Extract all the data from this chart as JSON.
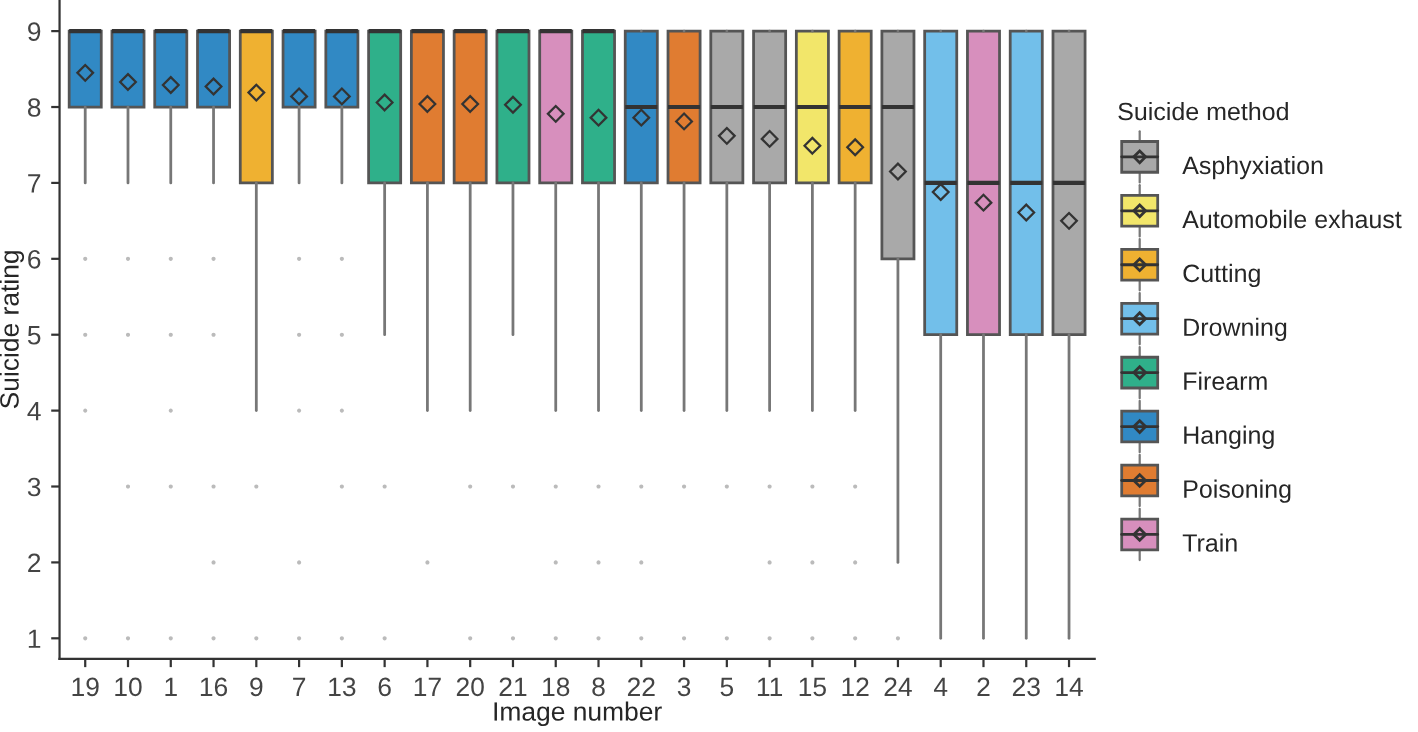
{
  "chart_data": {
    "type": "box",
    "xlabel": "Image number",
    "ylabel": "Suicide rating",
    "legend_title": "Suicide method",
    "legend": "right",
    "grid": false,
    "categories": [
      "19",
      "10",
      "1",
      "16",
      "9",
      "7",
      "13",
      "6",
      "17",
      "20",
      "21",
      "18",
      "8",
      "22",
      "3",
      "5",
      "11",
      "15",
      "12",
      "24",
      "4",
      "2",
      "23",
      "14"
    ],
    "ylim": [
      0.73,
      9.41
    ],
    "yticks": [
      1,
      2,
      3,
      4,
      5,
      6,
      7,
      8,
      9
    ],
    "series": [
      {
        "name": "Asphyxiation",
        "color": "#a9a9a9",
        "boxes": [
          null,
          null,
          null,
          null,
          null,
          null,
          null,
          null,
          null,
          null,
          null,
          null,
          null,
          null,
          null,
          {
            "low": 4,
            "q1": 7,
            "median": 8,
            "q3": 9,
            "high": 9,
            "mean": 7.62,
            "outliers": [
              3,
              1
            ]
          },
          {
            "low": 4,
            "q1": 7,
            "median": 8,
            "q3": 9,
            "high": 9,
            "mean": 7.58,
            "outliers": [
              3,
              2,
              1
            ]
          },
          null,
          null,
          {
            "low": 2,
            "q1": 6,
            "median": 8,
            "q3": 9,
            "high": 9,
            "mean": 7.15,
            "outliers": [
              1
            ]
          },
          null,
          null,
          null,
          {
            "low": 1,
            "q1": 5,
            "median": 7,
            "q3": 9,
            "high": 9,
            "mean": 6.5
          }
        ]
      },
      {
        "name": "Automobile exhaust",
        "color": "#f2e66a",
        "boxes": [
          null,
          null,
          null,
          null,
          null,
          null,
          null,
          null,
          null,
          null,
          null,
          null,
          null,
          null,
          null,
          null,
          null,
          {
            "low": 4,
            "q1": 7,
            "median": 8,
            "q3": 9,
            "high": 9,
            "mean": 7.49,
            "outliers": [
              3,
              2,
              1
            ]
          },
          null,
          null,
          null,
          null,
          null,
          null
        ]
      },
      {
        "name": "Cutting",
        "color": "#efb131",
        "boxes": [
          null,
          null,
          null,
          null,
          {
            "low": 4,
            "q1": 7,
            "median": 9,
            "q3": 9,
            "high": 9,
            "mean": 8.19,
            "outliers": [
              3,
              1
            ]
          },
          null,
          null,
          null,
          null,
          null,
          null,
          null,
          null,
          null,
          null,
          null,
          null,
          null,
          {
            "low": 4,
            "q1": 7,
            "median": 8,
            "q3": 9,
            "high": 9,
            "mean": 7.47,
            "outliers": [
              3,
              2,
              1
            ]
          },
          null,
          null,
          null,
          null,
          null
        ]
      },
      {
        "name": "Drowning",
        "color": "#72bfea",
        "boxes": [
          null,
          null,
          null,
          null,
          null,
          null,
          null,
          null,
          null,
          null,
          null,
          null,
          null,
          null,
          null,
          null,
          null,
          null,
          null,
          null,
          {
            "low": 1,
            "q1": 5,
            "median": 7,
            "q3": 9,
            "high": 9,
            "mean": 6.88
          },
          null,
          {
            "low": 1,
            "q1": 5,
            "median": 7,
            "q3": 9,
            "high": 9,
            "mean": 6.61
          },
          null
        ]
      },
      {
        "name": "Firearm",
        "color": "#2fb08a",
        "boxes": [
          null,
          null,
          null,
          null,
          null,
          null,
          null,
          {
            "low": 5,
            "q1": 7,
            "median": 9,
            "q3": 9,
            "high": 9,
            "mean": 8.06,
            "outliers": [
              3,
              1
            ]
          },
          null,
          null,
          {
            "low": 5,
            "q1": 7,
            "median": 9,
            "q3": 9,
            "high": 9,
            "mean": 8.03,
            "outliers": [
              3,
              1
            ]
          },
          null,
          {
            "low": 4,
            "q1": 7,
            "median": 9,
            "q3": 9,
            "high": 9,
            "mean": 7.86,
            "outliers": [
              3,
              2,
              1
            ]
          },
          null,
          null,
          null,
          null,
          null,
          null,
          null,
          null,
          null,
          null,
          null
        ]
      },
      {
        "name": "Hanging",
        "color": "#3189c4",
        "boxes": [
          {
            "low": 7,
            "q1": 8,
            "median": 9,
            "q3": 9,
            "high": 9,
            "mean": 8.45,
            "outliers": [
              6,
              5,
              4,
              1
            ]
          },
          {
            "low": 7,
            "q1": 8,
            "median": 9,
            "q3": 9,
            "high": 9,
            "mean": 8.33,
            "outliers": [
              6,
              5,
              3,
              1
            ]
          },
          {
            "low": 7,
            "q1": 8,
            "median": 9,
            "q3": 9,
            "high": 9,
            "mean": 8.29,
            "outliers": [
              6,
              5,
              4,
              3,
              1
            ]
          },
          {
            "low": 7,
            "q1": 8,
            "median": 9,
            "q3": 9,
            "high": 9,
            "mean": 8.27,
            "outliers": [
              6,
              5,
              3,
              2,
              1
            ]
          },
          null,
          {
            "low": 7,
            "q1": 8,
            "median": 9,
            "q3": 9,
            "high": 9,
            "mean": 8.14,
            "outliers": [
              6,
              5,
              4,
              2,
              1
            ]
          },
          {
            "low": 7,
            "q1": 8,
            "median": 9,
            "q3": 9,
            "high": 9,
            "mean": 8.14,
            "outliers": [
              6,
              5,
              4,
              3,
              1
            ]
          },
          null,
          null,
          null,
          null,
          null,
          null,
          {
            "low": 4,
            "q1": 7,
            "median": 8,
            "q3": 9,
            "high": 9,
            "mean": 7.86,
            "outliers": [
              3,
              2,
              1
            ]
          },
          null,
          null,
          null,
          null,
          null,
          null,
          null,
          null,
          null,
          null
        ]
      },
      {
        "name": "Poisoning",
        "color": "#e07c31",
        "boxes": [
          null,
          null,
          null,
          null,
          null,
          null,
          null,
          null,
          {
            "low": 4,
            "q1": 7,
            "median": 9,
            "q3": 9,
            "high": 9,
            "mean": 8.04,
            "outliers": [
              2
            ]
          },
          {
            "low": 4,
            "q1": 7,
            "median": 9,
            "q3": 9,
            "high": 9,
            "mean": 8.04,
            "outliers": [
              3,
              1
            ]
          },
          null,
          null,
          null,
          null,
          {
            "low": 4,
            "q1": 7,
            "median": 8,
            "q3": 9,
            "high": 9,
            "mean": 7.81,
            "outliers": [
              3,
              1
            ]
          },
          null,
          null,
          null,
          null,
          null,
          null,
          null,
          null,
          null
        ]
      },
      {
        "name": "Train",
        "color": "#d78fbd",
        "boxes": [
          null,
          null,
          null,
          null,
          null,
          null,
          null,
          null,
          null,
          null,
          null,
          {
            "low": 4,
            "q1": 7,
            "median": 9,
            "q3": 9,
            "high": 9,
            "mean": 7.91,
            "outliers": [
              3,
              2,
              1
            ]
          },
          null,
          null,
          null,
          null,
          null,
          null,
          null,
          null,
          null,
          {
            "low": 1,
            "q1": 5,
            "median": 7,
            "q3": 9,
            "high": 9,
            "mean": 6.74
          },
          null,
          null
        ]
      }
    ]
  }
}
